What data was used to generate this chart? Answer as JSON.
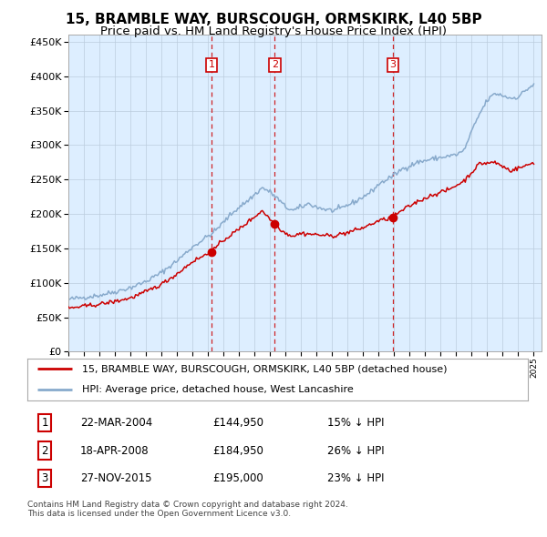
{
  "title": "15, BRAMBLE WAY, BURSCOUGH, ORMSKIRK, L40 5BP",
  "subtitle": "Price paid vs. HM Land Registry's House Price Index (HPI)",
  "property_label": "15, BRAMBLE WAY, BURSCOUGH, ORMSKIRK, L40 5BP (detached house)",
  "hpi_label": "HPI: Average price, detached house, West Lancashire",
  "footnote": "Contains HM Land Registry data © Crown copyright and database right 2024.\nThis data is licensed under the Open Government Licence v3.0.",
  "transactions": [
    {
      "num": 1,
      "date": "22-MAR-2004",
      "price": 144950,
      "pct": "15%",
      "dir": "↓"
    },
    {
      "num": 2,
      "date": "18-APR-2008",
      "price": 184950,
      "pct": "26%",
      "dir": "↓"
    },
    {
      "num": 3,
      "date": "27-NOV-2015",
      "price": 195000,
      "pct": "23%",
      "dir": "↓"
    }
  ],
  "vline_dates": [
    2004.22,
    2008.3,
    2015.92
  ],
  "ylim": [
    0,
    460000
  ],
  "yticks": [
    0,
    50000,
    100000,
    150000,
    200000,
    250000,
    300000,
    350000,
    400000,
    450000
  ],
  "property_color": "#cc0000",
  "hpi_color": "#88aacc",
  "vline_color": "#cc0000",
  "chart_bg": "#ddeeff",
  "plot_bg": "#ffffff",
  "grid_color": "#bbccdd",
  "title_fontsize": 11,
  "subtitle_fontsize": 9.5,
  "hpi_anchors_t": [
    1995.0,
    1996.0,
    1997.0,
    1998.0,
    1999.0,
    2000.0,
    2001.0,
    2002.0,
    2003.0,
    2004.0,
    2004.3,
    2005.0,
    2005.5,
    2006.0,
    2006.5,
    2007.0,
    2007.5,
    2008.0,
    2008.5,
    2009.0,
    2009.5,
    2010.0,
    2010.5,
    2011.0,
    2011.5,
    2012.0,
    2012.5,
    2013.0,
    2013.5,
    2014.0,
    2014.5,
    2015.0,
    2015.9,
    2016.5,
    2017.5,
    2018.5,
    2019.5,
    2020.0,
    2020.5,
    2021.0,
    2021.5,
    2022.0,
    2022.5,
    2023.0,
    2023.5,
    2024.0,
    2024.5,
    2025.0
  ],
  "hpi_anchors_v": [
    76000,
    79000,
    82000,
    87000,
    93000,
    102000,
    115000,
    132000,
    152000,
    168000,
    172000,
    188000,
    200000,
    210000,
    218000,
    228000,
    238000,
    232000,
    222000,
    210000,
    205000,
    210000,
    215000,
    210000,
    207000,
    205000,
    207000,
    213000,
    218000,
    225000,
    232000,
    243000,
    255000,
    265000,
    275000,
    280000,
    284000,
    286000,
    292000,
    320000,
    345000,
    365000,
    375000,
    372000,
    368000,
    370000,
    380000,
    388000
  ],
  "prop_anchors_t": [
    1995.0,
    1996.0,
    1997.0,
    1998.0,
    1999.0,
    2000.0,
    2001.0,
    2002.0,
    2003.0,
    2004.22,
    2005.0,
    2006.0,
    2007.0,
    2007.5,
    2008.3,
    2009.0,
    2009.5,
    2010.0,
    2011.0,
    2012.0,
    2013.0,
    2014.0,
    2015.0,
    2015.92,
    2016.5,
    2017.5,
    2018.5,
    2019.5,
    2020.5,
    2021.5,
    2022.5,
    2023.5,
    2024.5,
    2025.0
  ],
  "prop_anchors_v": [
    63000,
    66000,
    69000,
    73000,
    78000,
    87000,
    98000,
    113000,
    131000,
    144950,
    162000,
    178000,
    196000,
    205000,
    184950,
    172000,
    168000,
    172000,
    170000,
    168000,
    173000,
    180000,
    190000,
    195000,
    205000,
    218000,
    228000,
    235000,
    248000,
    273000,
    275000,
    263000,
    270000,
    275000
  ]
}
